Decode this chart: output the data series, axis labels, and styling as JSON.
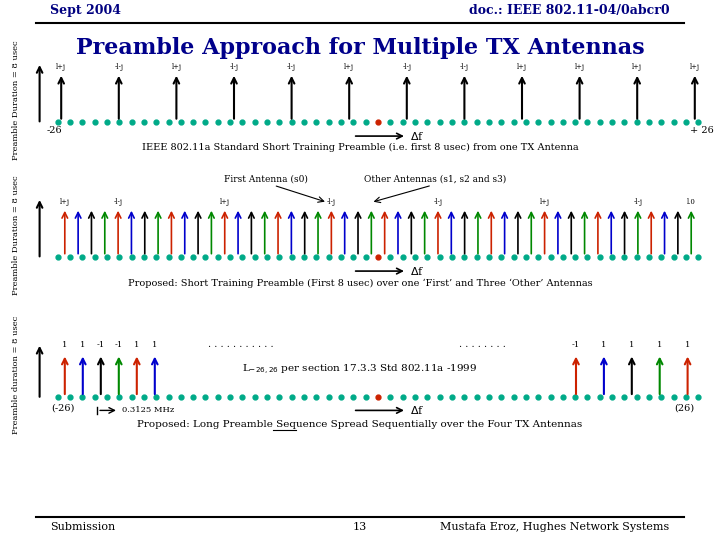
{
  "title": "Preamble Approach for Multiple TX Antennas",
  "header_left": "Sept 2004",
  "header_right": "doc.: IEEE 802.11-04/0abcr0",
  "footer_left": "Submission",
  "footer_center": "13",
  "footer_right": "Mustafa Eroz, Hughes Network Systems",
  "bg_color": "#ffffff",
  "title_color": "#00008B",
  "header_color": "#000080",
  "section1": {
    "ylabel": "Preamble Duration = 8 usec",
    "caption": "IEEE 802.11a Standard Short Training Preamble (i.e. first 8 usec) from one TX Antenna",
    "minus26": "-26",
    "plus26": "+ 26",
    "n_dots": 53,
    "arrow_labels": [
      "l+j",
      "-l-j",
      "l+j",
      "-l-j",
      "-l-j",
      "l+j",
      "-l-j",
      "-l-j",
      "l+j",
      "l+j",
      "l+j",
      "l+j"
    ],
    "dot_color": "#00AA88",
    "center_dot_color": "#CC2200"
  },
  "section2": {
    "ylabel": "Preamble Duration = 8 usec",
    "caption": "Proposed: Short Training Preamble (First 8 usec) over one ‘First’ and Three ‘Other’ Antennas",
    "label1": "First Antenna (s0)",
    "label2": "Other Antennas (s1, s2 and s3)",
    "arrow_colors": [
      "#CC2200",
      "#0000CC",
      "#000000",
      "#008800"
    ],
    "center_dot_color": "#CC2200",
    "dot_color": "#00AA88"
  },
  "section3": {
    "ylabel": "Preamble duration = 8 usec",
    "caption_pre": "Proposed: ",
    "caption_underline": "Long",
    "caption_post": " Preamble Sequence Spread Sequentially over the Four TX Antennas",
    "minus26": "(-26)",
    "plus26": "(26)",
    "dot_color": "#00AA88",
    "center_dot_color": "#CC2200",
    "arrow_colors_left": [
      "#CC2200",
      "#0000CC",
      "#000000",
      "#008800",
      "#CC2200",
      "#0000CC"
    ],
    "arrow_colors_right": [
      "#CC2200",
      "#0000CC",
      "#000000",
      "#008800",
      "#CC2200"
    ],
    "seq_left_labels": [
      "1",
      "1",
      "-1",
      "-1",
      "1",
      "1"
    ],
    "seq_right_labels": [
      "-1",
      "1",
      "1",
      "1",
      "1"
    ]
  }
}
